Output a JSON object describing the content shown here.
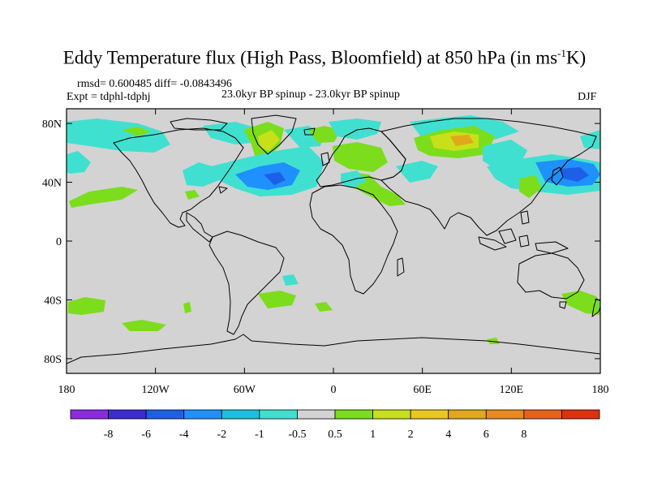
{
  "title_main": "Eddy Temperature flux (High Pass, Bloomfield) at 850 hPa (in ms",
  "title_sup": "-1",
  "title_end": "K)",
  "stats": {
    "rmsd_line": "rmsd= 0.600485 diff= -0.0843496",
    "expt_line": "Expt = tdphl-tdphj",
    "subtitle": "23.0kyr BP spinup - 23.0kyr BP spinup",
    "season": "DJF"
  },
  "map": {
    "projection": "cylindrical equidistant",
    "lon_range": [
      -180,
      180
    ],
    "lat_range": [
      -90,
      90
    ],
    "background_color": "#d3d3d3",
    "coastline_color": "#000000",
    "lat_ticks": [
      {
        "value": 80,
        "label": "80N"
      },
      {
        "value": 40,
        "label": "40N"
      },
      {
        "value": 0,
        "label": "0"
      },
      {
        "value": -40,
        "label": "40S"
      },
      {
        "value": -80,
        "label": "80S"
      }
    ],
    "lon_ticks": [
      {
        "value": -180,
        "label": "180"
      },
      {
        "value": -120,
        "label": "120W"
      },
      {
        "value": -60,
        "label": "60W"
      },
      {
        "value": 0,
        "label": "0"
      },
      {
        "value": 60,
        "label": "60E"
      },
      {
        "value": 120,
        "label": "120E"
      },
      {
        "value": 180,
        "label": "180"
      }
    ]
  },
  "colorbar": {
    "colors": [
      "#8a2be2",
      "#3a2bd6",
      "#1e5fe8",
      "#1e90ff",
      "#19c0e0",
      "#40e0d0",
      "#d3d3d3",
      "#7cdd1c",
      "#c8e01a",
      "#e8c81c",
      "#e0a81a",
      "#e88a1c",
      "#e8601c",
      "#e03010"
    ],
    "labels": [
      "-8",
      "-6",
      "-4",
      "-2",
      "-1",
      "-0.5",
      "0.5",
      "1",
      "2",
      "4",
      "6",
      "8"
    ]
  }
}
